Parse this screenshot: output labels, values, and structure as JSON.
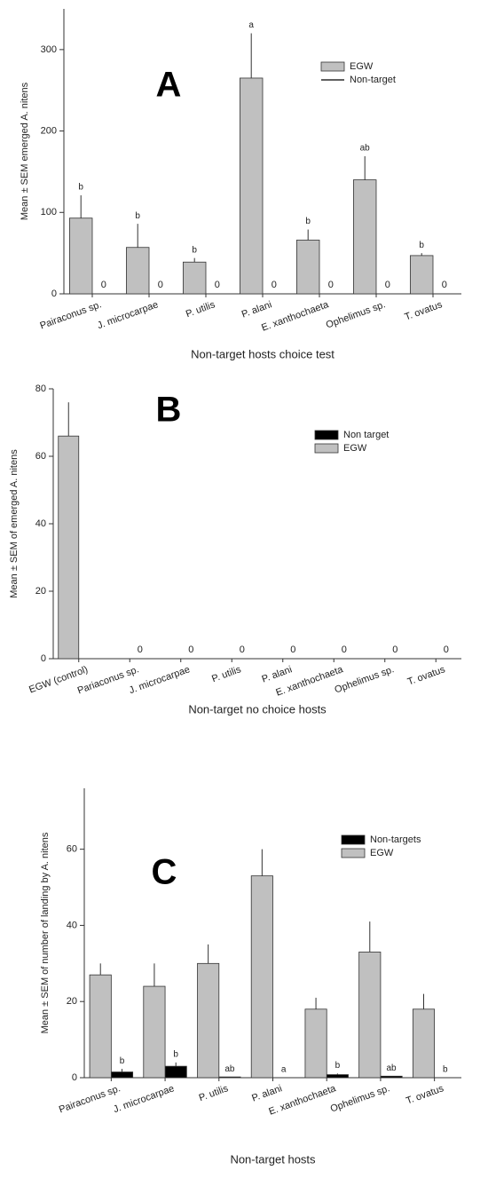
{
  "chart_data": [
    {
      "type": "bar",
      "label": "A",
      "y_label": "Mean ± SEM emerged A. nitens",
      "x_label": "Non-target hosts choice test",
      "categories": [
        "Pairaconus sp.",
        "J. microcarpae",
        "P. utilis",
        "P. alani",
        "E. xanthochaeta",
        "Ophelimus sp.",
        "T. ovatus"
      ],
      "series": [
        {
          "name": "EGW",
          "color": "#c0c0c0",
          "values": [
            93,
            57,
            39,
            265,
            66,
            140,
            47
          ],
          "err": [
            28,
            29,
            5,
            55,
            13,
            29,
            3
          ]
        },
        {
          "name": "Non-target",
          "color": "#000000",
          "legend_marker": "line",
          "data_labels": true,
          "values": [
            0,
            0,
            0,
            0,
            0,
            0,
            0
          ]
        }
      ],
      "letters": [
        "b",
        "b",
        "b",
        "a",
        "b",
        "ab",
        "b"
      ],
      "ylim": [
        0,
        350
      ],
      "yticks": [
        0,
        100,
        200,
        300
      ],
      "legend": "upper right"
    },
    {
      "type": "bar",
      "label": "B",
      "y_label": "Mean ± SEM of emerged A. nitens",
      "x_label": "Non-target no choice hosts",
      "categories": [
        "EGW (control)",
        "Pariaconus sp.",
        "J. microcarpae",
        "P. utilis",
        "P. alani",
        "E. xanthochaeta",
        "Ophelimus sp.",
        "T. ovatus"
      ],
      "series": [
        {
          "name": "Non target",
          "color": "#000000",
          "data_labels": true,
          "values": [
            null,
            0,
            0,
            0,
            0,
            0,
            0,
            0
          ]
        },
        {
          "name": "EGW",
          "color": "#c0c0c0",
          "values": [
            66,
            null,
            null,
            null,
            null,
            null,
            null,
            null
          ],
          "err": [
            10,
            null,
            null,
            null,
            null,
            null,
            null,
            null
          ]
        }
      ],
      "ylim": [
        0,
        80
      ],
      "yticks": [
        0,
        20,
        40,
        60,
        80
      ],
      "legend": "upper right"
    },
    {
      "type": "bar",
      "label": "C",
      "y_label": "Mean ± SEM of number of landing by A. nitens",
      "x_label": "Non-target hosts",
      "categories": [
        "Pairaconus sp.",
        "J. microcarpae",
        "P. utilis",
        "P. alani",
        "E. xanthochaeta",
        "Ophelimus sp.",
        "T. ovatus"
      ],
      "series": [
        {
          "name": "Non-targets",
          "color": "#000000",
          "values": [
            1.5,
            3,
            0.2,
            0,
            0.8,
            0.4,
            0
          ],
          "err": [
            0.8,
            1,
            null,
            null,
            0.3,
            null,
            null
          ]
        },
        {
          "name": "EGW",
          "color": "#c0c0c0",
          "values": [
            27,
            24,
            30,
            53,
            18,
            33,
            18
          ],
          "err": [
            3,
            6,
            5,
            7,
            3,
            8,
            4
          ]
        }
      ],
      "letters": [
        "b",
        "b",
        "ab",
        "a",
        "b",
        "ab",
        "b"
      ],
      "ylim": [
        0,
        76
      ],
      "yticks": [
        0,
        20,
        40,
        60
      ],
      "legend": "upper right"
    }
  ]
}
